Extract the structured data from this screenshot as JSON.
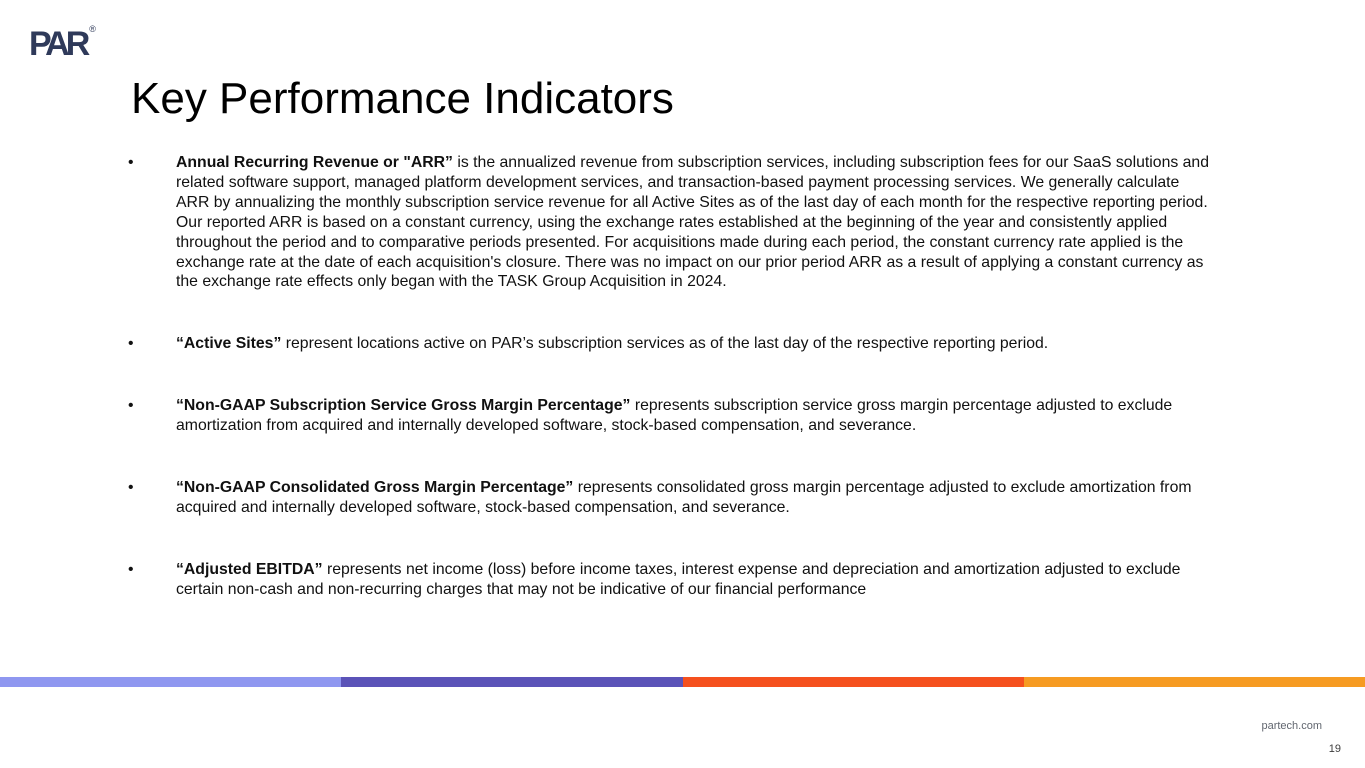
{
  "slide": {
    "logo_text": "PAR",
    "logo_registered": "®",
    "title": "Key Performance Indicators",
    "bullet_char": "•",
    "bullets": [
      {
        "term": "Annual Recurring Revenue or \"ARR”",
        "text": " is the annualized revenue from subscription services, including subscription fees for our SaaS solutions and related software support, managed platform development services, and transaction-based payment processing services. We generally calculate ARR by annualizing the monthly subscription service revenue for all Active Sites as of the last day of each month for the respective reporting period. Our reported ARR is based on a constant currency, using the exchange rates established at the beginning of the year and consistently applied throughout the period and to comparative periods presented. For acquisitions made during each period, the constant currency rate applied is the exchange rate at the date of each acquisition's closure. There was no impact on our prior period ARR as a result of applying a constant currency as the exchange rate effects only began with the TASK Group Acquisition in 2024."
      },
      {
        "term": "“Active Sites”",
        "text": " represent locations active on PAR’s subscription services as of the last day of the respective reporting period."
      },
      {
        "term": "“Non-GAAP Subscription Service Gross Margin Percentage”",
        "text": " represents subscription service gross margin percentage adjusted to exclude amortization from acquired and internally developed software, stock-based compensation, and severance."
      },
      {
        "term": "“Non-GAAP Consolidated Gross Margin Percentage”",
        "text": " represents consolidated gross margin percentage adjusted to exclude amortization from acquired and internally developed software, stock-based compensation, and severance."
      },
      {
        "term": "“Adjusted EBITDA”",
        "text": " represents net income (loss) before income taxes, interest expense and depreciation and amortization adjusted to exclude certain non-cash and non-recurring charges that may not be indicative of our financial performance"
      }
    ],
    "footer": {
      "website": "partech.com",
      "page_number": "19"
    },
    "colors": {
      "logo": "#2f3a5a",
      "bar_segments": [
        "#8f97f0",
        "#5b53b8",
        "#f5501e",
        "#f69b22"
      ]
    }
  }
}
